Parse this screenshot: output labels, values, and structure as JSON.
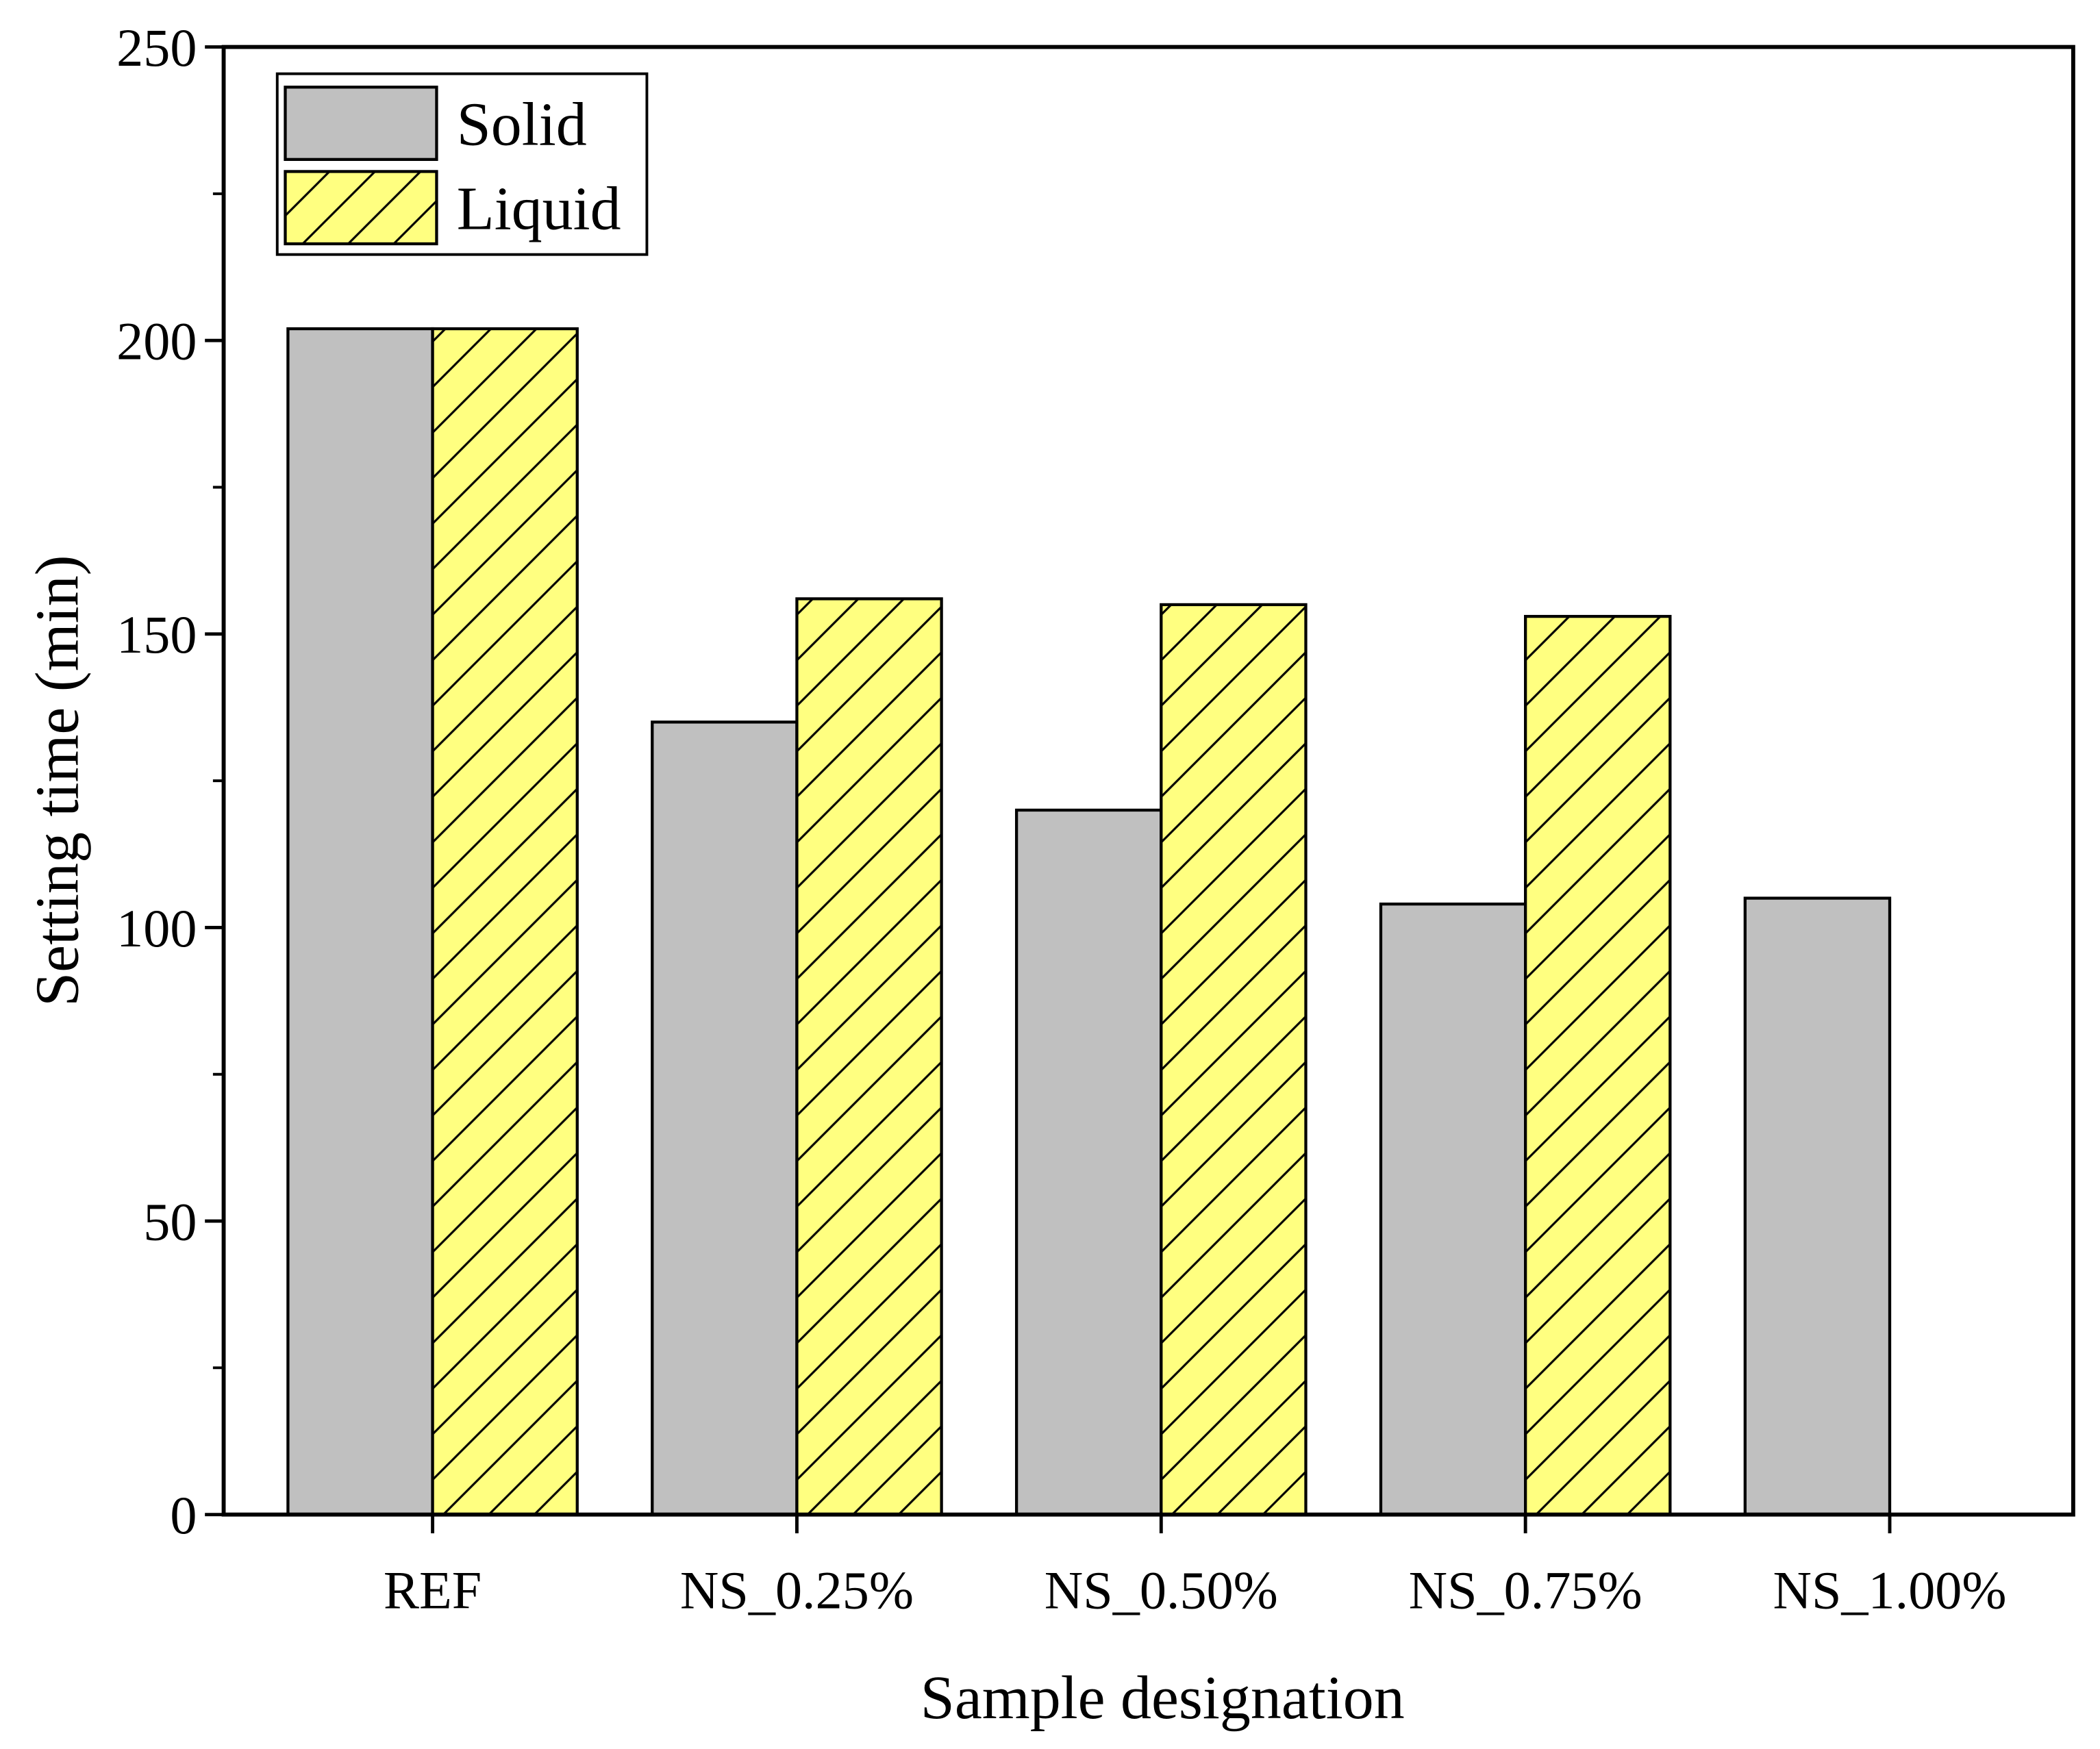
{
  "chart_data": {
    "type": "bar",
    "x_label": "Sample designation",
    "y_label": "Setting time (min)",
    "categories": [
      "REF",
      "NS_0.25%",
      "NS_0.50%",
      "NS_0.75%",
      "NS_1.00%"
    ],
    "series": [
      {
        "name": "Solid",
        "color": "#c0c0c0",
        "values": [
          202,
          135,
          120,
          104,
          105
        ]
      },
      {
        "name": "Liquid",
        "color": "#ffff80",
        "hatch": true,
        "values": [
          202,
          156,
          155,
          153,
          null
        ]
      }
    ],
    "ylim": [
      0,
      250
    ],
    "yticks": [
      0,
      50,
      100,
      150,
      200,
      250
    ],
    "legend": "upper left"
  }
}
